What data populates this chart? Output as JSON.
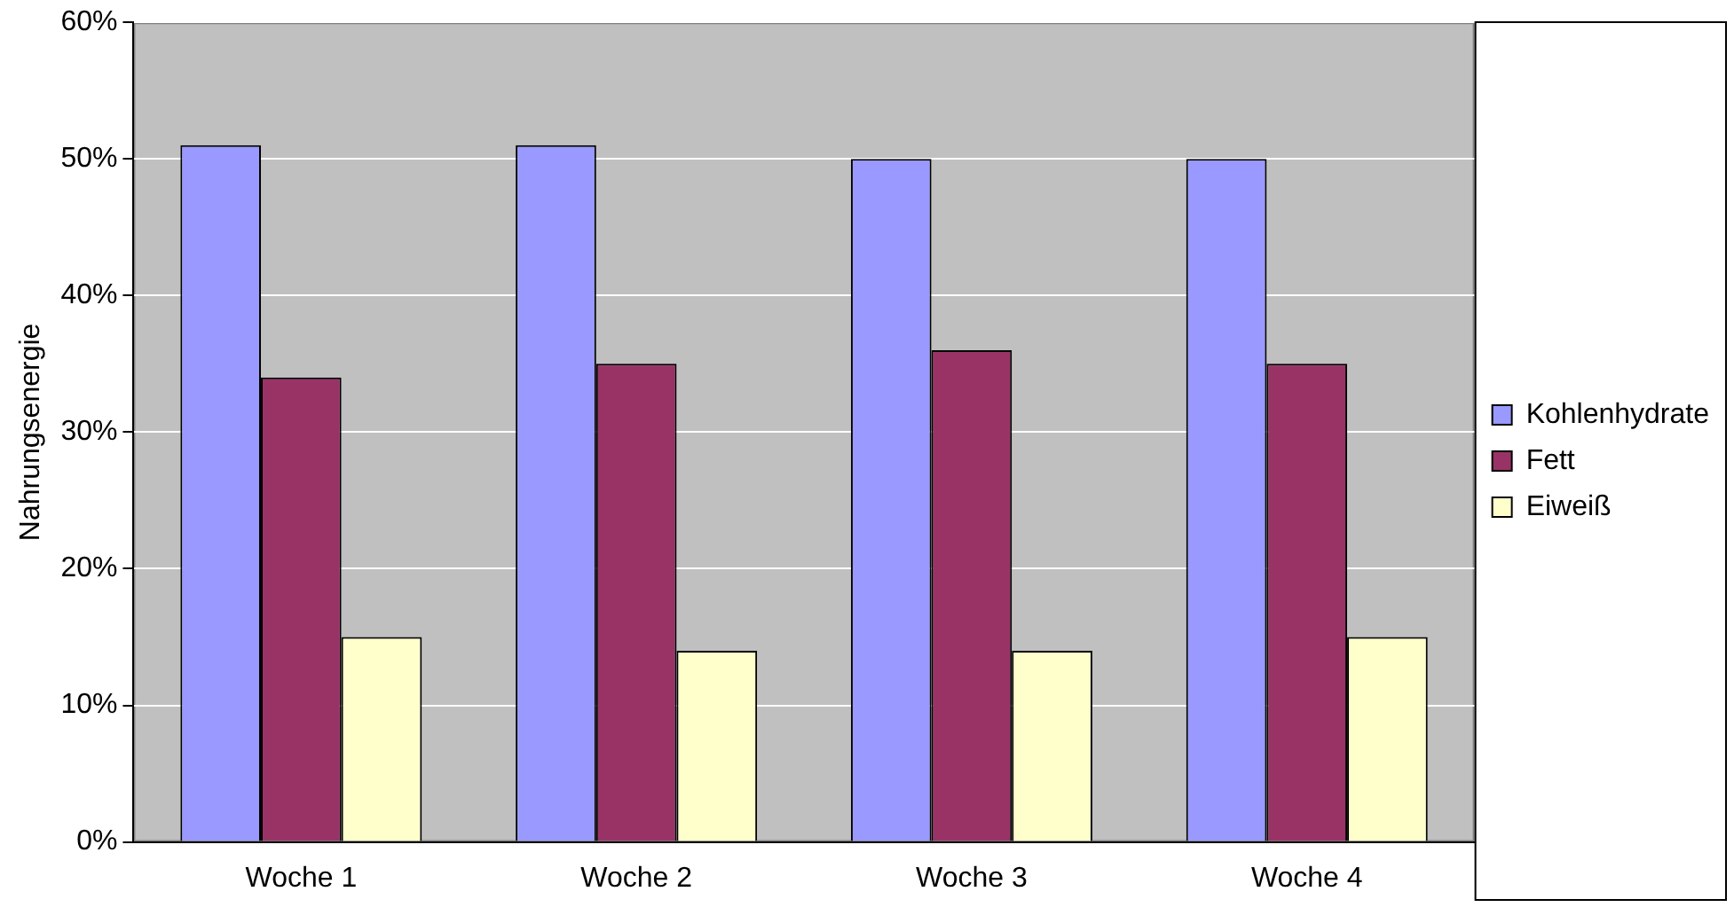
{
  "chart_data": {
    "type": "bar",
    "ylabel": "Nahrungsenergie",
    "categories": [
      "Woche 1",
      "Woche 2",
      "Woche 3",
      "Woche 4"
    ],
    "series": [
      {
        "name": "Kohlenhydrate",
        "color": "#9999ff",
        "values": [
          51,
          51,
          50,
          50
        ]
      },
      {
        "name": "Fett",
        "color": "#993366",
        "values": [
          34,
          35,
          36,
          35
        ]
      },
      {
        "name": "Eiweiß",
        "color": "#ffffcc",
        "values": [
          15,
          14,
          14,
          15
        ]
      }
    ],
    "ylim": [
      0,
      60
    ],
    "yticks": [
      {
        "value": 0,
        "label": "0%"
      },
      {
        "value": 10,
        "label": "10%"
      },
      {
        "value": 20,
        "label": "20%"
      },
      {
        "value": 30,
        "label": "30%"
      },
      {
        "value": 40,
        "label": "40%"
      },
      {
        "value": 50,
        "label": "50%"
      },
      {
        "value": 60,
        "label": "60%"
      }
    ],
    "grid": "y",
    "legend": "right"
  }
}
